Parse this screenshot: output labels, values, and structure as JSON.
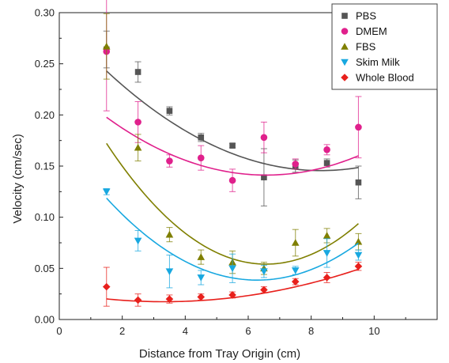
{
  "chart_data": {
    "type": "scatter",
    "title": "",
    "xlabel": "Distance from Tray Origin (cm)",
    "ylabel": "Velocity (cm/sec)",
    "xlim": [
      0,
      12
    ],
    "ylim": [
      0,
      0.3
    ],
    "x_ticks": [
      "0",
      "2",
      "4",
      "6",
      "8",
      "10"
    ],
    "y_ticks": [
      "0.00",
      "0.05",
      "0.10",
      "0.15",
      "0.20",
      "0.25",
      "0.30"
    ],
    "grid": false,
    "legend_position": "top-right",
    "series": [
      {
        "name": "PBS",
        "color": "#555555",
        "marker": "square",
        "points": [
          {
            "x": 1.5,
            "y": 0.264,
            "err": 0.018
          },
          {
            "x": 2.5,
            "y": 0.242,
            "err": 0.01
          },
          {
            "x": 3.5,
            "y": 0.204,
            "err": 0.004
          },
          {
            "x": 4.5,
            "y": 0.178,
            "err": 0.004
          },
          {
            "x": 5.5,
            "y": 0.17,
            "err": 0.002
          },
          {
            "x": 6.5,
            "y": 0.139,
            "err": 0.028
          },
          {
            "x": 7.5,
            "y": 0.15,
            "err": 0.006
          },
          {
            "x": 8.5,
            "y": 0.153,
            "err": 0.004
          },
          {
            "x": 9.5,
            "y": 0.134,
            "err": 0.016
          }
        ],
        "fit": [
          0.2906,
          -0.0349,
          0.0021
        ]
      },
      {
        "name": "DMEM",
        "color": "#e0208c",
        "marker": "circle",
        "points": [
          {
            "x": 1.5,
            "y": 0.262,
            "err": 0.058
          },
          {
            "x": 2.5,
            "y": 0.193,
            "err": 0.02
          },
          {
            "x": 3.5,
            "y": 0.155,
            "err": 0.006
          },
          {
            "x": 4.5,
            "y": 0.158,
            "err": 0.012
          },
          {
            "x": 5.5,
            "y": 0.136,
            "err": 0.011
          },
          {
            "x": 6.5,
            "y": 0.178,
            "err": 0.015
          },
          {
            "x": 7.5,
            "y": 0.152,
            "err": 0.005
          },
          {
            "x": 8.5,
            "y": 0.166,
            "err": 0.005
          },
          {
            "x": 9.5,
            "y": 0.188,
            "err": 0.03
          }
        ],
        "fit": [
          0.2361,
          -0.0289,
          0.0022
        ]
      },
      {
        "name": "FBS",
        "color": "#7f7f00",
        "marker": "triangle-up",
        "points": [
          {
            "x": 1.5,
            "y": 0.267,
            "err": 0.032
          },
          {
            "x": 2.5,
            "y": 0.168,
            "err": 0.013
          },
          {
            "x": 3.5,
            "y": 0.083,
            "err": 0.007
          },
          {
            "x": 4.5,
            "y": 0.061,
            "err": 0.007
          },
          {
            "x": 5.5,
            "y": 0.056,
            "err": 0.011
          },
          {
            "x": 6.5,
            "y": 0.05,
            "err": 0.006
          },
          {
            "x": 7.5,
            "y": 0.075,
            "err": 0.013
          },
          {
            "x": 8.5,
            "y": 0.082,
            "err": 0.007
          },
          {
            "x": 9.5,
            "y": 0.076,
            "err": 0.008
          }
        ],
        "fit": [
          0.2524,
          -0.0604,
          0.0046
        ]
      },
      {
        "name": "Skim Milk",
        "color": "#18a8e0",
        "marker": "triangle-down",
        "points": [
          {
            "x": 1.5,
            "y": 0.125,
            "err": 0.003
          },
          {
            "x": 2.5,
            "y": 0.077,
            "err": 0.01
          },
          {
            "x": 3.5,
            "y": 0.047,
            "err": 0.016
          },
          {
            "x": 4.5,
            "y": 0.041,
            "err": 0.007
          },
          {
            "x": 5.5,
            "y": 0.05,
            "err": 0.014
          },
          {
            "x": 6.5,
            "y": 0.047,
            "err": 0.006
          },
          {
            "x": 7.5,
            "y": 0.048,
            "err": 0.004
          },
          {
            "x": 8.5,
            "y": 0.065,
            "err": 0.014
          },
          {
            "x": 9.5,
            "y": 0.063,
            "err": 0.005
          }
        ],
        "fit": [
          0.1768,
          -0.044,
          0.0035
        ]
      },
      {
        "name": "Whole Blood",
        "color": "#e8201c",
        "marker": "diamond",
        "points": [
          {
            "x": 1.5,
            "y": 0.032,
            "err": 0.019
          },
          {
            "x": 2.5,
            "y": 0.019,
            "err": 0.006
          },
          {
            "x": 3.5,
            "y": 0.02,
            "err": 0.004
          },
          {
            "x": 4.5,
            "y": 0.022,
            "err": 0.003
          },
          {
            "x": 5.5,
            "y": 0.024,
            "err": 0.003
          },
          {
            "x": 6.5,
            "y": 0.029,
            "err": 0.003
          },
          {
            "x": 7.5,
            "y": 0.037,
            "err": 0.003
          },
          {
            "x": 8.5,
            "y": 0.041,
            "err": 0.005
          },
          {
            "x": 9.5,
            "y": 0.052,
            "err": 0.004
          }
        ],
        "fit": [
          0.0265,
          -0.0055,
          0.00083
        ]
      }
    ]
  }
}
